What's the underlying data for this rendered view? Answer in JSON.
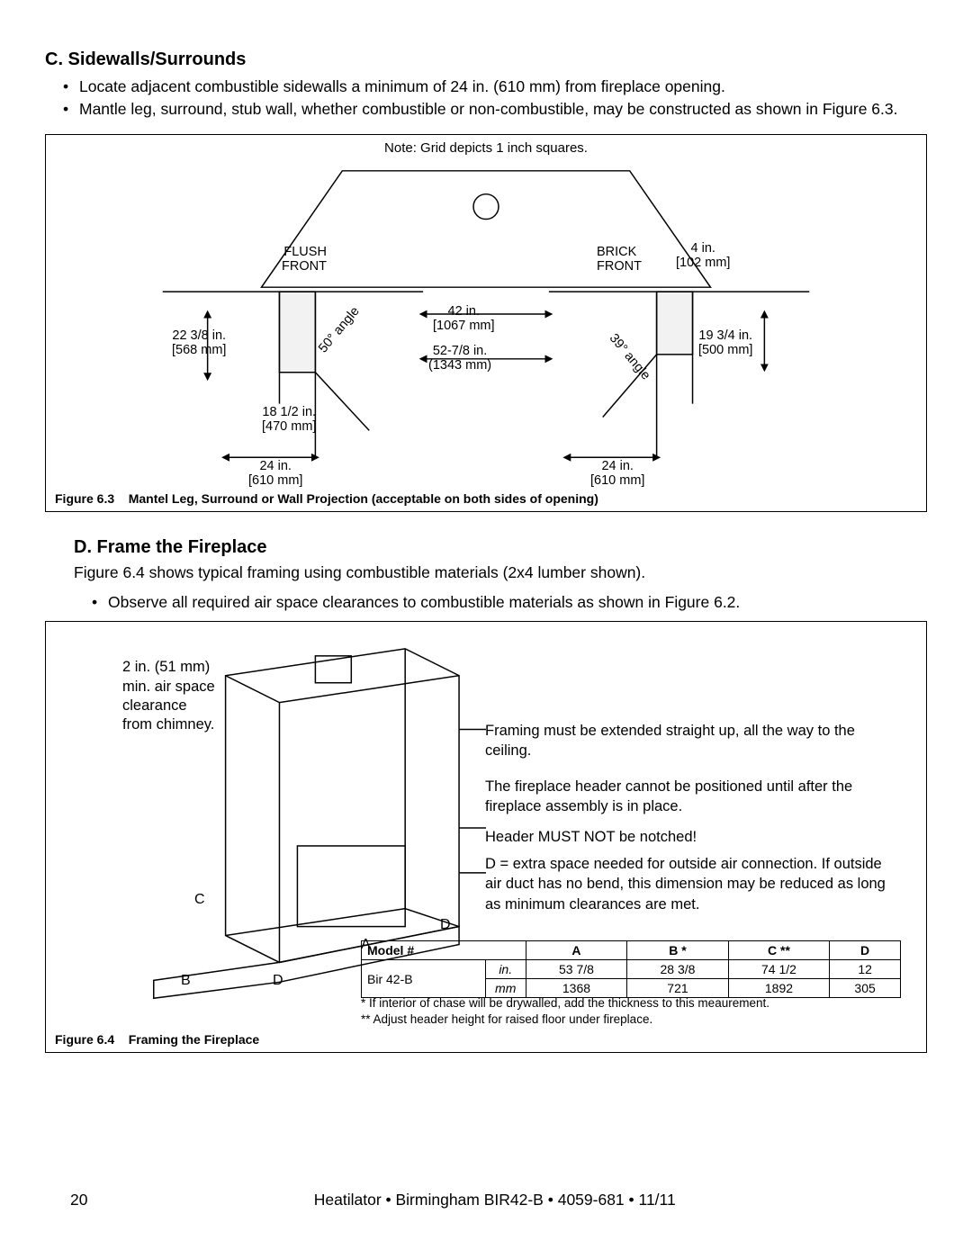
{
  "sectionC": {
    "heading": "C. Sidewalls/Surrounds",
    "bullets": [
      "Locate adjacent combustible sidewalls a minimum of 24 in. (610 mm) from fireplace opening.",
      "Mantle leg, surround, stub wall, whether combustible or non-combustible, may be constructed as shown in Figure 6.3."
    ]
  },
  "fig63": {
    "note_top": "Note: Grid depicts 1 inch squares.",
    "labels": {
      "flush_front": "FLUSH\nFRONT",
      "brick_front": "BRICK\nFRONT",
      "four_in": "4 in.\n[102 mm]",
      "d22": "22 3/8 in.\n[568 mm]",
      "d19": "19 3/4 in.\n[500 mm]",
      "d42": "42 in.\n[1067 mm]",
      "d52": "52-7/8 in.\n(1343 mm)",
      "d18": "18 1/2 in.\n[470 mm]",
      "d24l": "24 in.\n[610 mm]",
      "d24r": "24 in.\n[610 mm]",
      "ang50": "50° angle",
      "ang39": "39° angle"
    },
    "caption_no": "Figure 6.3",
    "caption_text": "Mantel Leg, Surround or Wall Projection (acceptable on both sides of opening)"
  },
  "sectionD": {
    "heading": "D. Frame the Fireplace",
    "para": "Figure 6.4 shows typical framing using combustible materials (2x4 lumber shown).",
    "bullets": [
      "Observe all required air space clearances to combustible materials as shown in Figure 6.2."
    ]
  },
  "fig64": {
    "left_note": "2 in. (51 mm)\nmin. air space\nclearance\nfrom chimney.",
    "side_notes": {
      "n1": "Framing must be extended straight up, all the way to the ceiling.",
      "n2": "The fireplace header cannot be positioned until after the fireplace assembly is in place.",
      "n3": "Header MUST NOT be notched!",
      "n4": "D = extra space needed for outside air connection. If outside air duct has no bend, this dimension may be reduced as long as minimum clearances are met."
    },
    "letters": {
      "A": "A",
      "B": "B",
      "C": "C",
      "D": "D"
    },
    "table": {
      "headers": [
        "Model #",
        "",
        "A",
        "B *",
        "C **",
        "D"
      ],
      "model": "Bir 42-B",
      "units": [
        "in.",
        "mm"
      ],
      "rows_in": [
        "53 7/8",
        "28 3/8",
        "74 1/2",
        "12"
      ],
      "rows_mm": [
        "1368",
        "721",
        "1892",
        "305"
      ]
    },
    "table_notes": {
      "n1": "* If interior of chase will be drywalled, add the thickness to this meaurement.",
      "n2": "** Adjust header height for raised floor under fireplace."
    },
    "caption_no": "Figure 6.4",
    "caption_text": "Framing the Fireplace"
  },
  "footer": {
    "page": "20",
    "center": "Heatilator • Birmingham BIR42-B • 4059-681 • 11/11"
  },
  "colors": {
    "border": "#000000",
    "text": "#000000",
    "bg": "#ffffff"
  }
}
